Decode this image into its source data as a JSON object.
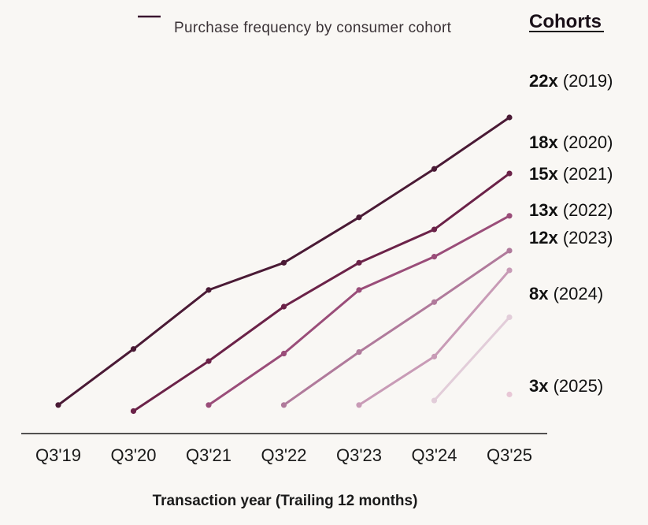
{
  "chart_data": {
    "type": "line",
    "legend_label": "Purchase frequency by consumer cohort",
    "legend_title": "Cohorts",
    "xlabel": "Transaction year  (Trailing 12 months)",
    "ylabel": "",
    "categories": [
      "Q3'19",
      "Q3'20",
      "Q3'21",
      "Q3'22",
      "Q3'23",
      "Q3'24",
      "Q3'25"
    ],
    "ylim": [
      0,
      23
    ],
    "grid": false,
    "series": [
      {
        "name": "2019",
        "label_mult": "22x",
        "label_year": "(2019)",
        "color": "#4a1a35",
        "values": [
          1.0,
          4.7,
          8.6,
          10.4,
          13.4,
          16.6,
          20.0
        ]
      },
      {
        "name": "2020",
        "label_mult": "18x",
        "label_year": "(2020)",
        "color": "#6b2248",
        "values": [
          null,
          0.6,
          3.9,
          7.5,
          10.4,
          12.6,
          16.3
        ]
      },
      {
        "name": "2021",
        "label_mult": "15x",
        "label_year": "(2021)",
        "color": "#9a4d79",
        "values": [
          null,
          null,
          1.0,
          4.4,
          8.6,
          10.8,
          13.5
        ]
      },
      {
        "name": "2022",
        "label_mult": "13x",
        "label_year": "(2022)",
        "color": "#b07a9b",
        "values": [
          null,
          null,
          null,
          1.0,
          4.5,
          7.8,
          11.2
        ]
      },
      {
        "name": "2023",
        "label_mult": "12x",
        "label_year": "(2023)",
        "color": "#c89bb6",
        "values": [
          null,
          null,
          null,
          null,
          1.0,
          4.2,
          9.9
        ]
      },
      {
        "name": "2024",
        "label_mult": "8x",
        "label_year": "(2024)",
        "color": "#e2cdd9",
        "values": [
          null,
          null,
          null,
          null,
          null,
          1.3,
          6.8
        ]
      },
      {
        "name": "2025",
        "label_mult": "3x",
        "label_year": "(2025)",
        "color": "#e8c7d6",
        "values": [
          null,
          null,
          null,
          null,
          null,
          null,
          1.7
        ]
      }
    ]
  }
}
